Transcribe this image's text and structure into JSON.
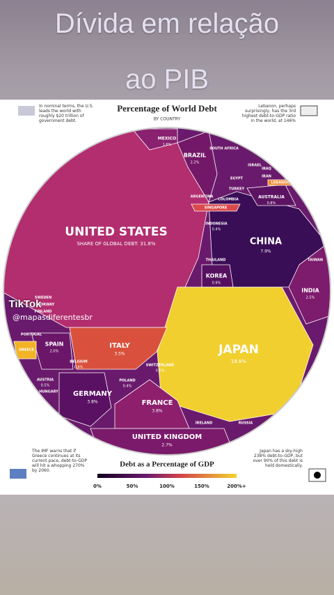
{
  "overlay_title": [
    "Dívida em relação",
    "ao PIB"
  ],
  "infographic": {
    "title": "Percentage of World Debt",
    "subtitle": "BY COUNTRY",
    "notes": [
      "In nominal terms, the U.S. leads the world with roughly $20 trillion of government debt.",
      "Lebanon, perhaps surprisingly, has the 3rd highest debt-to-GDP ratio in the world, at 146%",
      "The IMF warns that if Greece continues at its current pace, debt-to-GDP will hit a whopping 270% by 2060.",
      "Japan has a sky-high 238% debt-to-GDP, but over 90% of this debt is held domestically."
    ],
    "legend_title": "Debt as a Percentage of GDP",
    "legend_labels": [
      "0%",
      "50%",
      "100%",
      "150%",
      "200%+"
    ],
    "regions": [
      {
        "name": "UNITED STATES",
        "share": "SHARE OF GLOBAL DEBT: 31.8%"
      },
      {
        "name": "JAPAN",
        "share": "18.8%"
      },
      {
        "name": "CHINA",
        "share": "7.9%"
      },
      {
        "name": "ITALY",
        "share": "3.5%"
      },
      {
        "name": "GERMANY",
        "share": "3.8%"
      },
      {
        "name": "FRANCE",
        "share": "3.8%"
      },
      {
        "name": "UNITED KINGDOM",
        "share": "2.7%"
      },
      {
        "name": "SPAIN",
        "share": "2.0%"
      },
      {
        "name": "INDIA",
        "share": "2.5%"
      },
      {
        "name": "BRAZIL",
        "share": "2.2%"
      },
      {
        "name": "MEXICO",
        "share": "1.6%"
      },
      {
        "name": "KOREA",
        "share": "0.9%"
      },
      {
        "name": "AUSTRALIA",
        "share": "0.8%"
      },
      {
        "name": "INDONESIA",
        "share": "0.4%"
      },
      {
        "name": "SWITZERLAND",
        "share": "0.5%"
      },
      {
        "name": "POLAND",
        "share": "0.4%"
      },
      {
        "name": "BELGIUM",
        "share": "0.8%"
      },
      {
        "name": "AUSTRIA",
        "share": "0.5%"
      },
      {
        "name": "EGYPT"
      },
      {
        "name": "TURKEY"
      },
      {
        "name": "IRAN"
      },
      {
        "name": "IRAQ"
      },
      {
        "name": "ARGENTINA"
      },
      {
        "name": "COLOMBIA"
      },
      {
        "name": "SINGAPORE"
      },
      {
        "name": "THAILAND"
      },
      {
        "name": "TAIWAN"
      },
      {
        "name": "IRELAND"
      },
      {
        "name": "RUSSIA"
      },
      {
        "name": "SWEDEN"
      },
      {
        "name": "NORWAY"
      },
      {
        "name": "FINLAND"
      },
      {
        "name": "PORTUGAL"
      },
      {
        "name": "GREECE"
      },
      {
        "name": "HUNGARY"
      },
      {
        "name": "ISRAEL"
      },
      {
        "name": "SOUTH AFRICA"
      },
      {
        "name": "LEBANON"
      }
    ]
  },
  "tiktok": {
    "brand": "TikTok",
    "handle": "@mapasdiferentesbr"
  }
}
